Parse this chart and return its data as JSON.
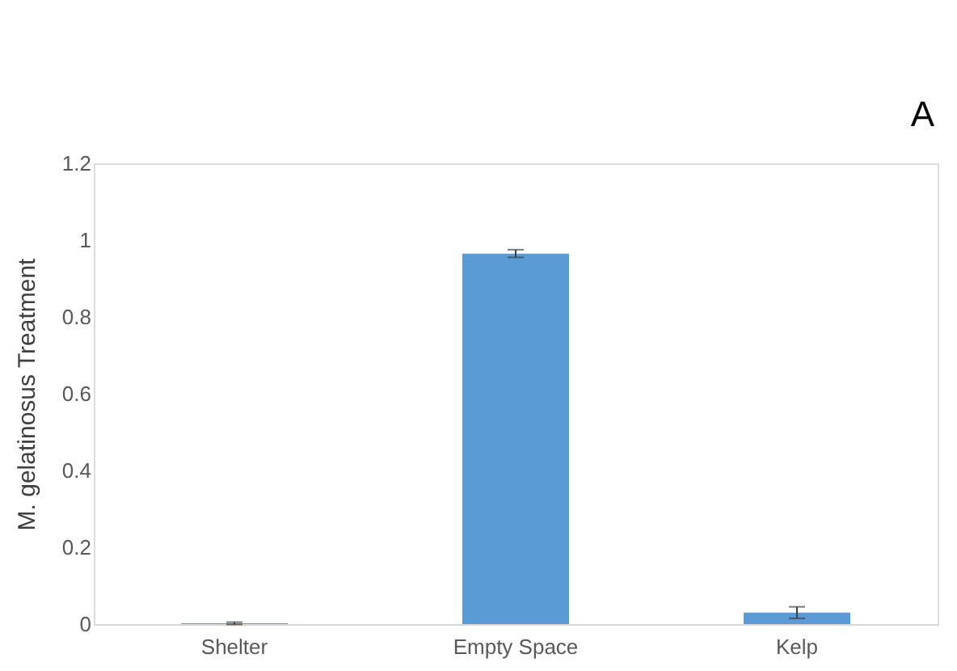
{
  "chart_data": {
    "type": "bar",
    "ylabel": "M. gelatinosus Treatment",
    "annotations": [
      "A"
    ],
    "categories": [
      "Shelter",
      "Empty Space",
      "Kelp"
    ],
    "values": [
      0.002,
      0.965,
      0.03
    ],
    "errors": [
      0.003,
      0.01,
      0.015
    ],
    "color": "#5b9bd5",
    "ylim": [
      0,
      1.2
    ],
    "yticks": [
      0,
      0.2,
      0.4,
      0.6,
      0.8,
      1,
      1.2
    ],
    "grid": false
  }
}
